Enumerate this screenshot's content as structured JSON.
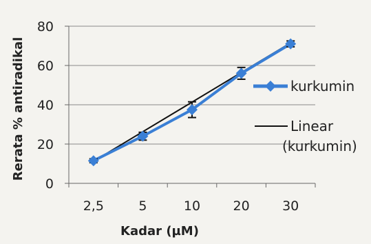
{
  "chart_data": {
    "type": "line",
    "title": "",
    "xlabel": "Kadar (µM)",
    "ylabel": "Rerata % antiradikal",
    "categories": [
      "2,5",
      "5",
      "10",
      "20",
      "30"
    ],
    "ylim": [
      0,
      80
    ],
    "yticks": [
      0,
      20,
      40,
      60,
      80
    ],
    "grid": true,
    "legend_position": "right",
    "series": [
      {
        "name": "kurkumin",
        "values": [
          11.5,
          24,
          37.5,
          56,
          71
        ],
        "error": [
          1,
          2,
          4,
          3,
          1.5
        ],
        "color": "#3a7fd5",
        "marker": "diamond"
      }
    ],
    "trendline": {
      "name": "Linear (kurkumin)",
      "type": "linear",
      "start": 11.2,
      "end": 71.5,
      "color": "#111111"
    }
  }
}
